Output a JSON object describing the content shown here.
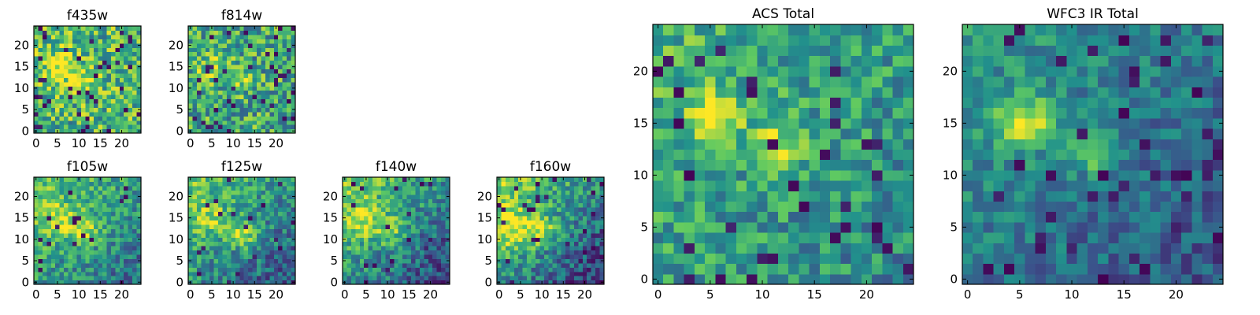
{
  "figure": {
    "background": "#ffffff",
    "colormap": "viridis",
    "colormap_stops": [
      "#440154",
      "#3b528b",
      "#21918c",
      "#5ec962",
      "#fde725"
    ]
  },
  "chart_data": [
    {
      "type": "heatmap",
      "title": "f435w",
      "grid_size": 25,
      "xlim": [
        0,
        24
      ],
      "ylim": [
        0,
        24
      ],
      "xticks": [
        0,
        5,
        10,
        15,
        20
      ],
      "yticks": [
        0,
        5,
        10,
        15,
        20
      ],
      "peaks": [
        {
          "x": 5.5,
          "y": 15.5,
          "amp": 0.35,
          "sigma": 2.6
        },
        {
          "x": 11,
          "y": 12,
          "amp": 0.18,
          "sigma": 2.2
        }
      ],
      "base": 0.66,
      "noise": 0.3,
      "gradient": 0.0,
      "seed": 11,
      "dark_fraction": 0.06
    },
    {
      "type": "heatmap",
      "title": "f814w",
      "grid_size": 25,
      "xlim": [
        0,
        24
      ],
      "ylim": [
        0,
        24
      ],
      "xticks": [
        0,
        5,
        10,
        15,
        20
      ],
      "yticks": [
        0,
        5,
        10,
        15,
        20
      ],
      "peaks": [
        {
          "x": 5.5,
          "y": 15,
          "amp": 0.3,
          "sigma": 2.6
        },
        {
          "x": 11.5,
          "y": 12,
          "amp": 0.25,
          "sigma": 2.0
        }
      ],
      "base": 0.6,
      "noise": 0.3,
      "gradient": 0.0,
      "seed": 23,
      "dark_fraction": 0.06
    },
    {
      "type": "heatmap",
      "title": "f105w",
      "grid_size": 25,
      "xlim": [
        0,
        24
      ],
      "ylim": [
        0,
        24
      ],
      "xticks": [
        0,
        5,
        10,
        15,
        20
      ],
      "yticks": [
        0,
        5,
        10,
        15,
        20
      ],
      "peaks": [
        {
          "x": 5,
          "y": 14.5,
          "amp": 0.3,
          "sigma": 3.0
        },
        {
          "x": 11.5,
          "y": 12,
          "amp": 0.3,
          "sigma": 2.6
        }
      ],
      "base": 0.55,
      "noise": 0.22,
      "gradient": -0.008,
      "seed": 37,
      "dark_fraction": 0.03
    },
    {
      "type": "heatmap",
      "title": "f125w",
      "grid_size": 25,
      "xlim": [
        0,
        24
      ],
      "ylim": [
        0,
        24
      ],
      "xticks": [
        0,
        5,
        10,
        15,
        20
      ],
      "yticks": [
        0,
        5,
        10,
        15,
        20
      ],
      "peaks": [
        {
          "x": 5,
          "y": 14.5,
          "amp": 0.25,
          "sigma": 3.0
        },
        {
          "x": 12.5,
          "y": 11,
          "amp": 0.4,
          "sigma": 2.2
        }
      ],
      "base": 0.5,
      "noise": 0.22,
      "gradient": -0.01,
      "seed": 41,
      "dark_fraction": 0.04
    },
    {
      "type": "heatmap",
      "title": "f140w",
      "grid_size": 25,
      "xlim": [
        0,
        24
      ],
      "ylim": [
        0,
        24
      ],
      "xticks": [
        0,
        5,
        10,
        15,
        20
      ],
      "yticks": [
        0,
        5,
        10,
        15,
        20
      ],
      "peaks": [
        {
          "x": 4,
          "y": 14.5,
          "amp": 0.3,
          "sigma": 3.2
        },
        {
          "x": 11,
          "y": 12,
          "amp": 0.25,
          "sigma": 2.6
        }
      ],
      "base": 0.5,
      "noise": 0.22,
      "gradient": -0.012,
      "seed": 53,
      "dark_fraction": 0.04
    },
    {
      "type": "heatmap",
      "title": "f160w",
      "grid_size": 25,
      "xlim": [
        0,
        24
      ],
      "ylim": [
        0,
        24
      ],
      "xticks": [
        0,
        5,
        10,
        15,
        20
      ],
      "yticks": [
        0,
        5,
        10,
        15,
        20
      ],
      "peaks": [
        {
          "x": 3.5,
          "y": 12,
          "amp": 0.35,
          "sigma": 3.6
        },
        {
          "x": 10,
          "y": 12,
          "amp": 0.3,
          "sigma": 2.6
        }
      ],
      "base": 0.5,
      "noise": 0.22,
      "gradient": -0.014,
      "seed": 67,
      "dark_fraction": 0.05
    },
    {
      "type": "heatmap",
      "title": "ACS Total",
      "grid_size": 25,
      "xlim": [
        0,
        24
      ],
      "ylim": [
        0,
        24
      ],
      "xticks": [
        0,
        5,
        10,
        15,
        20
      ],
      "yticks": [
        0,
        5,
        10,
        15,
        20
      ],
      "peaks": [
        {
          "x": 5.5,
          "y": 15.5,
          "amp": 0.4,
          "sigma": 1.8
        },
        {
          "x": 11.5,
          "y": 13,
          "amp": 0.3,
          "sigma": 1.6
        }
      ],
      "base": 0.56,
      "noise": 0.22,
      "gradient": -0.004,
      "seed": 79,
      "dark_fraction": 0.06
    },
    {
      "type": "heatmap",
      "title": "WFC3 IR Total",
      "grid_size": 25,
      "xlim": [
        0,
        24
      ],
      "ylim": [
        0,
        24
      ],
      "xticks": [
        0,
        5,
        10,
        15,
        20
      ],
      "yticks": [
        0,
        5,
        10,
        15,
        20
      ],
      "peaks": [
        {
          "x": 5.5,
          "y": 15,
          "amp": 0.55,
          "sigma": 1.8
        },
        {
          "x": 12,
          "y": 12.5,
          "amp": 0.45,
          "sigma": 1.5
        }
      ],
      "base": 0.4,
      "noise": 0.16,
      "gradient": -0.006,
      "seed": 97,
      "dark_fraction": 0.06
    }
  ]
}
